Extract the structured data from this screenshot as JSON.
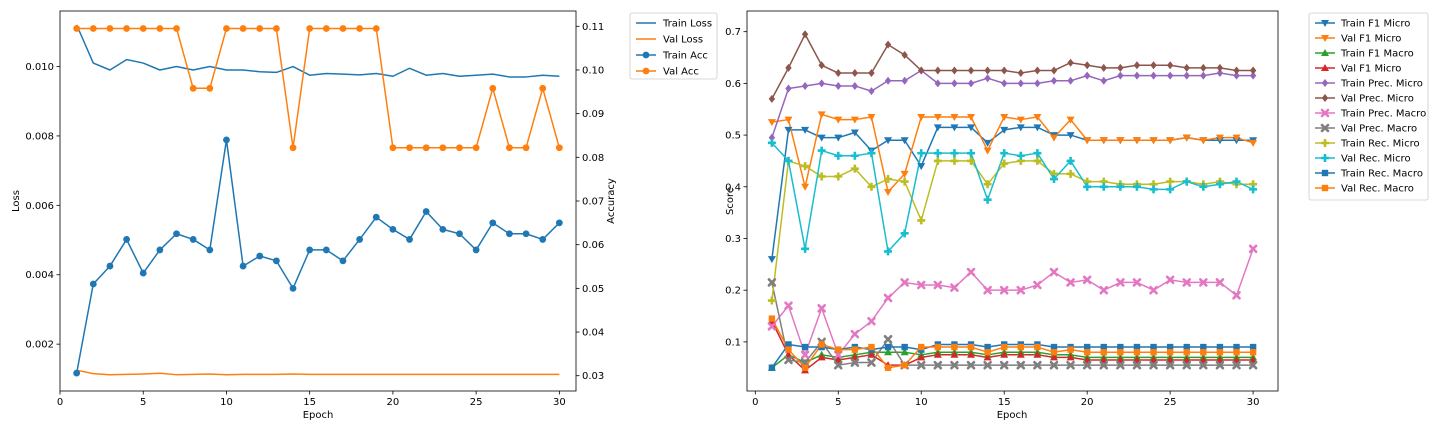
{
  "chart_data": [
    {
      "type": "line",
      "x": [
        1,
        2,
        3,
        4,
        5,
        6,
        7,
        8,
        9,
        10,
        11,
        12,
        13,
        14,
        15,
        16,
        17,
        18,
        19,
        20,
        21,
        22,
        23,
        24,
        25,
        26,
        27,
        28,
        29,
        30
      ],
      "xlabel": "Epoch",
      "ylabel": "Loss",
      "ylabel_right": "Accuracy",
      "xlim": [
        0.0,
        31.0
      ],
      "ylim": [
        0.00065,
        0.0116
      ],
      "ylim_right": [
        0.0265,
        0.1135
      ],
      "xticks": [
        0,
        5,
        10,
        15,
        20,
        25,
        30
      ],
      "xtick_labels": [
        "0",
        "5",
        "10",
        "15",
        "20",
        "25",
        "30"
      ],
      "yticks": [
        0.002,
        0.004,
        0.006,
        0.008,
        0.01
      ],
      "ytick_labels": [
        "0.002",
        "0.004",
        "0.006",
        "0.008",
        "0.010"
      ],
      "yticks_right": [
        0.03,
        0.04,
        0.05,
        0.06,
        0.07,
        0.08,
        0.09,
        0.1,
        0.11
      ],
      "ytick_labels_right": [
        "0.03",
        "0.04",
        "0.05",
        "0.06",
        "0.07",
        "0.08",
        "0.09",
        "0.10",
        "0.11"
      ],
      "grid": false,
      "legend_position": "outside-right-top",
      "series": [
        {
          "name": "Train Loss",
          "axis": "left",
          "color": "#1f77b4",
          "marker": "none",
          "values": [
            0.0112,
            0.0101,
            0.0099,
            0.0102,
            0.0101,
            0.0099,
            0.01,
            0.0099,
            0.01,
            0.0099,
            0.0099,
            0.00985,
            0.00983,
            0.01,
            0.00975,
            0.0098,
            0.00978,
            0.00976,
            0.0098,
            0.00972,
            0.00995,
            0.00975,
            0.0098,
            0.00972,
            0.00975,
            0.00978,
            0.0097,
            0.0097,
            0.00975,
            0.00972
          ]
        },
        {
          "name": "Val Loss",
          "axis": "left",
          "color": "#ff7f0e",
          "marker": "none",
          "values": [
            0.00125,
            0.00115,
            0.00112,
            0.00113,
            0.00114,
            0.00116,
            0.00112,
            0.00113,
            0.00114,
            0.00112,
            0.00113,
            0.00113,
            0.00113,
            0.00114,
            0.00113,
            0.00113,
            0.00113,
            0.00113,
            0.00113,
            0.00113,
            0.00113,
            0.00113,
            0.00113,
            0.00113,
            0.00113,
            0.00113,
            0.00113,
            0.00113,
            0.00113,
            0.00113
          ]
        },
        {
          "name": "Train Acc",
          "axis": "right",
          "color": "#1f77b4",
          "marker": "circle",
          "values": [
            0.0306,
            0.051,
            0.0551,
            0.0612,
            0.0535,
            0.0588,
            0.0625,
            0.0612,
            0.0588,
            0.084,
            0.0551,
            0.0574,
            0.0563,
            0.05,
            0.0588,
            0.0588,
            0.0563,
            0.0612,
            0.0663,
            0.0635,
            0.0612,
            0.0676,
            0.0635,
            0.0625,
            0.0588,
            0.065,
            0.0625,
            0.0625,
            0.0612,
            0.065
          ]
        },
        {
          "name": "Val Acc",
          "axis": "right",
          "color": "#ff7f0e",
          "marker": "circle",
          "values": [
            0.1095,
            0.1095,
            0.1095,
            0.1095,
            0.1095,
            0.1095,
            0.1095,
            0.0958,
            0.0958,
            0.1095,
            0.1095,
            0.1095,
            0.1095,
            0.0822,
            0.1095,
            0.1095,
            0.1095,
            0.1095,
            0.1095,
            0.0822,
            0.0822,
            0.0822,
            0.0822,
            0.0822,
            0.0822,
            0.0958,
            0.0822,
            0.0822,
            0.0958,
            0.0822
          ]
        }
      ]
    },
    {
      "type": "line",
      "x": [
        1,
        2,
        3,
        4,
        5,
        6,
        7,
        8,
        9,
        10,
        11,
        12,
        13,
        14,
        15,
        16,
        17,
        18,
        19,
        20,
        21,
        22,
        23,
        24,
        25,
        26,
        27,
        28,
        29,
        30
      ],
      "xlabel": "Epoch",
      "ylabel": "Score",
      "xlim": [
        -0.5,
        31.5
      ],
      "ylim": [
        0.005,
        0.74
      ],
      "xticks": [
        0,
        5,
        10,
        15,
        20,
        25,
        30
      ],
      "xtick_labels": [
        "0",
        "5",
        "10",
        "15",
        "20",
        "25",
        "30"
      ],
      "yticks": [
        0.1,
        0.2,
        0.3,
        0.4,
        0.5,
        0.6,
        0.7
      ],
      "ytick_labels": [
        "0.1",
        "0.2",
        "0.3",
        "0.4",
        "0.5",
        "0.6",
        "0.7"
      ],
      "grid": false,
      "legend_position": "outside-right-top",
      "series": [
        {
          "name": "Train F1 Micro",
          "color": "#1f77b4",
          "marker": "tri-down",
          "values": [
            0.26,
            0.51,
            0.51,
            0.495,
            0.495,
            0.505,
            0.47,
            0.49,
            0.49,
            0.44,
            0.515,
            0.515,
            0.515,
            0.485,
            0.51,
            0.515,
            0.515,
            0.5,
            0.5,
            0.49,
            0.49,
            0.49,
            0.49,
            0.49,
            0.49,
            0.495,
            0.49,
            0.49,
            0.49,
            0.49
          ]
        },
        {
          "name": "Val F1 Micro",
          "color": "#ff7f0e",
          "marker": "tri-down",
          "values": [
            0.525,
            0.53,
            0.4,
            0.54,
            0.53,
            0.53,
            0.535,
            0.39,
            0.425,
            0.535,
            0.535,
            0.535,
            0.535,
            0.47,
            0.535,
            0.53,
            0.535,
            0.495,
            0.53,
            0.49,
            0.49,
            0.49,
            0.49,
            0.49,
            0.49,
            0.495,
            0.49,
            0.495,
            0.495,
            0.485
          ]
        },
        {
          "name": "Train F1 Macro",
          "color": "#2ca02c",
          "marker": "tri-up",
          "values": [
            0.05,
            0.075,
            0.06,
            0.075,
            0.07,
            0.075,
            0.08,
            0.08,
            0.08,
            0.075,
            0.08,
            0.08,
            0.08,
            0.075,
            0.08,
            0.08,
            0.08,
            0.075,
            0.075,
            0.07,
            0.07,
            0.07,
            0.07,
            0.07,
            0.07,
            0.07,
            0.07,
            0.07,
            0.07,
            0.07
          ]
        },
        {
          "name": "Val F1 Micro",
          "color": "#d62728",
          "marker": "tri-up",
          "values": [
            0.14,
            0.075,
            0.045,
            0.07,
            0.065,
            0.07,
            0.075,
            0.055,
            0.055,
            0.07,
            0.075,
            0.075,
            0.075,
            0.07,
            0.075,
            0.075,
            0.075,
            0.07,
            0.07,
            0.065,
            0.065,
            0.065,
            0.065,
            0.065,
            0.065,
            0.065,
            0.065,
            0.065,
            0.065,
            0.065
          ]
        },
        {
          "name": "Train Prec. Micro",
          "color": "#9467bd",
          "marker": "diamond",
          "values": [
            0.495,
            0.59,
            0.595,
            0.6,
            0.595,
            0.595,
            0.585,
            0.605,
            0.605,
            0.625,
            0.6,
            0.6,
            0.6,
            0.61,
            0.6,
            0.6,
            0.6,
            0.605,
            0.605,
            0.615,
            0.605,
            0.615,
            0.615,
            0.615,
            0.615,
            0.615,
            0.615,
            0.62,
            0.615,
            0.615
          ]
        },
        {
          "name": "Val Prec. Micro",
          "color": "#8c564b",
          "marker": "diamond",
          "values": [
            0.57,
            0.63,
            0.695,
            0.635,
            0.62,
            0.62,
            0.62,
            0.675,
            0.655,
            0.625,
            0.625,
            0.625,
            0.625,
            0.625,
            0.625,
            0.62,
            0.625,
            0.625,
            0.64,
            0.635,
            0.63,
            0.63,
            0.635,
            0.635,
            0.635,
            0.63,
            0.63,
            0.63,
            0.625,
            0.625
          ]
        },
        {
          "name": "Train Prec. Macro",
          "color": "#e377c2",
          "marker": "x",
          "values": [
            0.13,
            0.17,
            0.075,
            0.165,
            0.075,
            0.115,
            0.14,
            0.185,
            0.215,
            0.21,
            0.21,
            0.205,
            0.235,
            0.2,
            0.2,
            0.2,
            0.21,
            0.235,
            0.215,
            0.22,
            0.2,
            0.215,
            0.215,
            0.2,
            0.22,
            0.215,
            0.215,
            0.215,
            0.19,
            0.28
          ]
        },
        {
          "name": "Val Prec. Macro",
          "color": "#7f7f7f",
          "marker": "x",
          "values": [
            0.215,
            0.065,
            0.06,
            0.1,
            0.055,
            0.06,
            0.06,
            0.105,
            0.055,
            0.055,
            0.055,
            0.055,
            0.055,
            0.055,
            0.055,
            0.055,
            0.055,
            0.055,
            0.055,
            0.055,
            0.055,
            0.055,
            0.055,
            0.055,
            0.055,
            0.055,
            0.055,
            0.055,
            0.055,
            0.055
          ]
        },
        {
          "name": "Train Rec. Micro",
          "color": "#bcbd22",
          "marker": "plus",
          "values": [
            0.18,
            0.45,
            0.44,
            0.42,
            0.42,
            0.435,
            0.4,
            0.415,
            0.41,
            0.335,
            0.45,
            0.45,
            0.45,
            0.405,
            0.445,
            0.45,
            0.45,
            0.425,
            0.425,
            0.41,
            0.41,
            0.405,
            0.405,
            0.405,
            0.41,
            0.41,
            0.405,
            0.41,
            0.405,
            0.405
          ]
        },
        {
          "name": "Val Rec. Micro",
          "color": "#17becf",
          "marker": "plus",
          "values": [
            0.485,
            0.45,
            0.28,
            0.47,
            0.46,
            0.46,
            0.465,
            0.275,
            0.31,
            0.465,
            0.465,
            0.465,
            0.465,
            0.375,
            0.465,
            0.46,
            0.465,
            0.415,
            0.45,
            0.4,
            0.4,
            0.4,
            0.4,
            0.395,
            0.395,
            0.41,
            0.4,
            0.405,
            0.41,
            0.395
          ]
        },
        {
          "name": "Train Rec. Macro",
          "color": "#1f77b4",
          "marker": "square",
          "values": [
            0.05,
            0.095,
            0.09,
            0.09,
            0.085,
            0.09,
            0.085,
            0.09,
            0.09,
            0.085,
            0.095,
            0.095,
            0.095,
            0.09,
            0.095,
            0.095,
            0.095,
            0.09,
            0.09,
            0.09,
            0.09,
            0.09,
            0.09,
            0.09,
            0.09,
            0.09,
            0.09,
            0.09,
            0.09,
            0.09
          ]
        },
        {
          "name": "Val Rec. Macro",
          "color": "#ff7f0e",
          "marker": "square",
          "values": [
            0.145,
            0.085,
            0.05,
            0.095,
            0.085,
            0.085,
            0.09,
            0.05,
            0.055,
            0.09,
            0.09,
            0.09,
            0.09,
            0.08,
            0.09,
            0.09,
            0.09,
            0.08,
            0.085,
            0.08,
            0.08,
            0.08,
            0.08,
            0.08,
            0.08,
            0.08,
            0.08,
            0.08,
            0.08,
            0.08
          ]
        }
      ]
    }
  ]
}
